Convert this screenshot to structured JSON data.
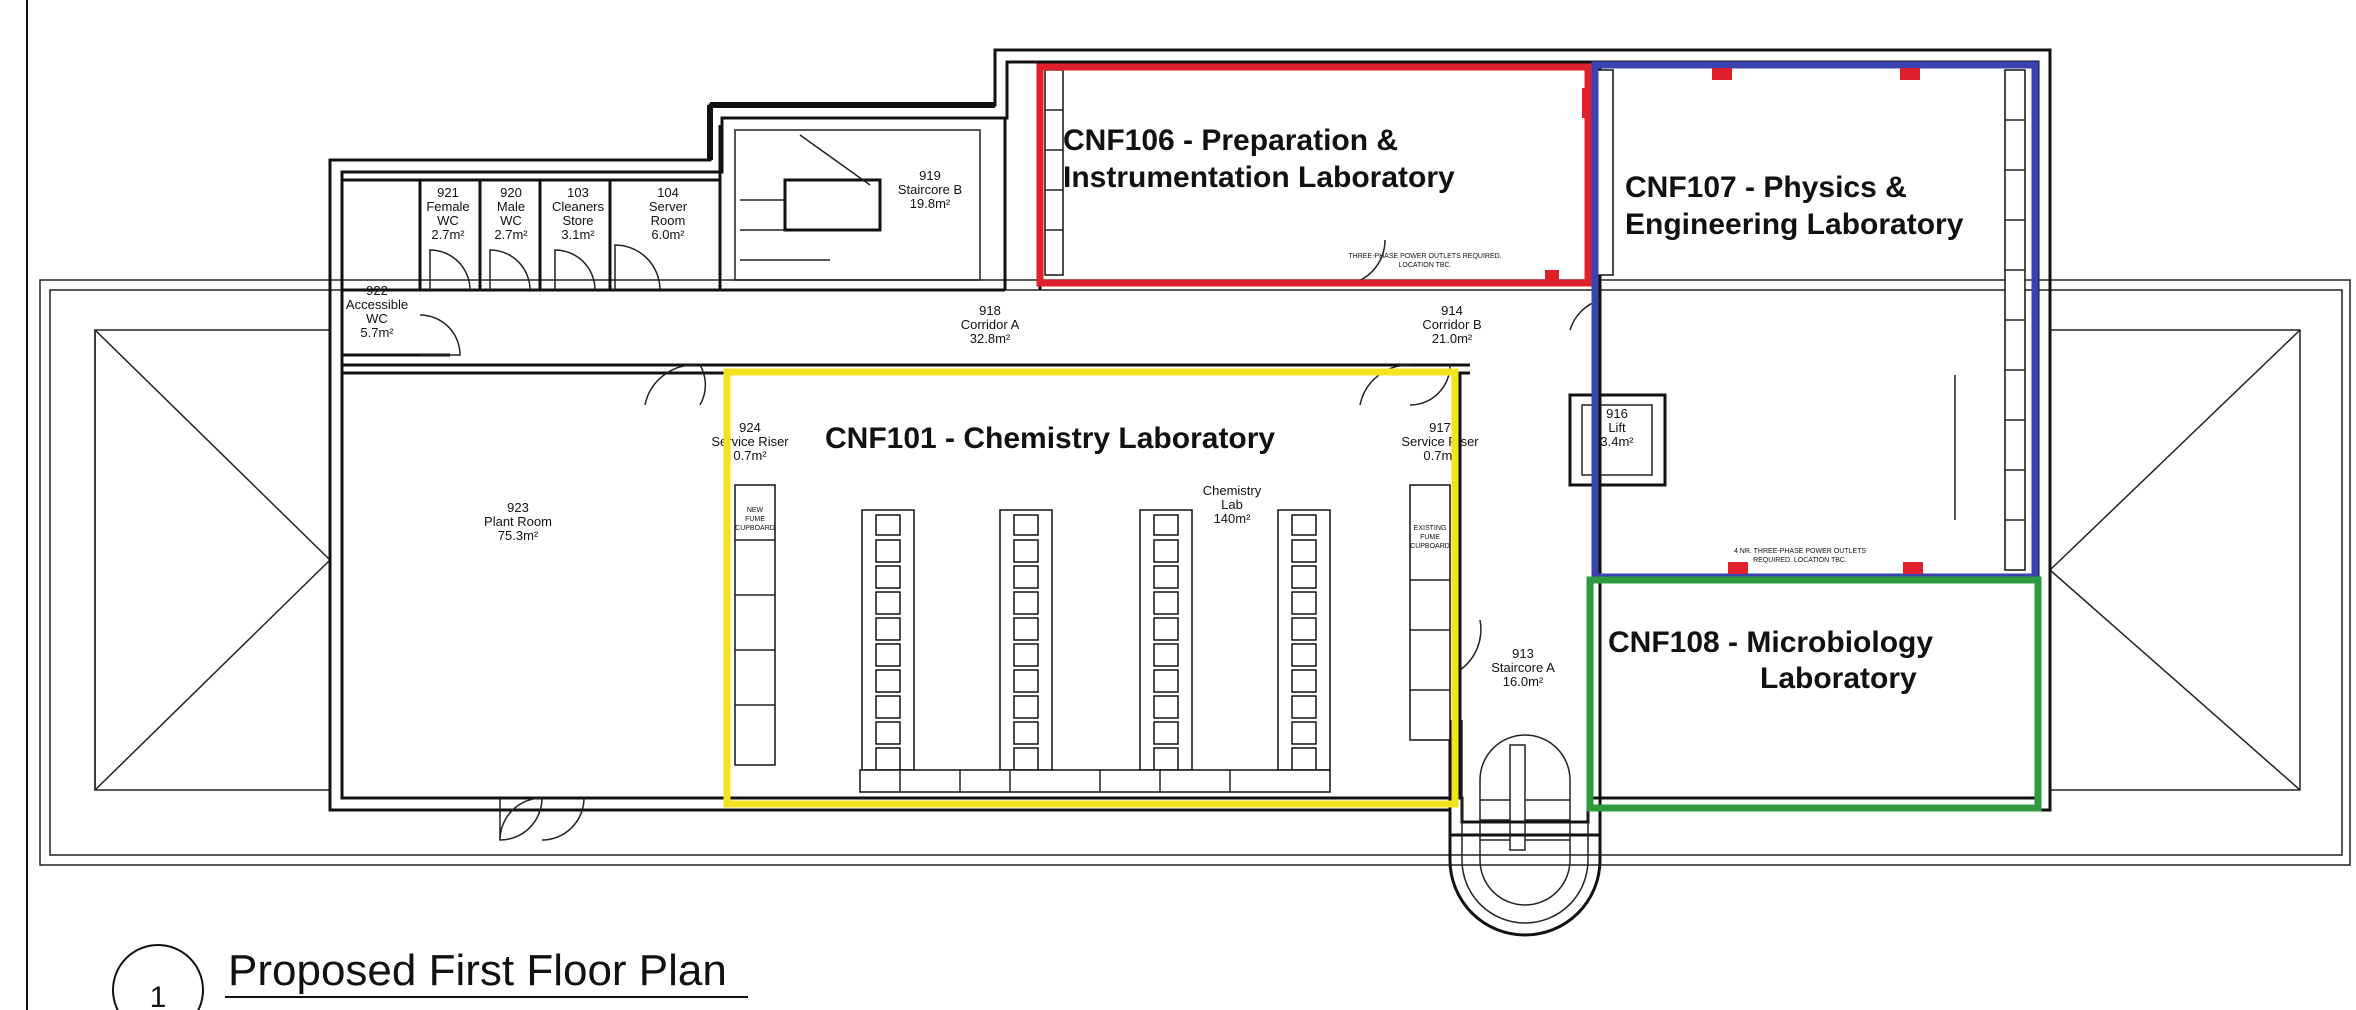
{
  "colors": {
    "cnf101": "#f3e21f",
    "cnf106": "#e0202a",
    "cnf107": "#3a44b0",
    "cnf108": "#2e9a3e",
    "line": "#111111",
    "marker": "#e0202a"
  },
  "zones": {
    "cnf101": "CNF101 - Chemistry Laboratory",
    "cnf106_line1": "CNF106 - Preparation &",
    "cnf106_line2": "Instrumentation Laboratory",
    "cnf107_line1": "CNF107 - Physics &",
    "cnf107_line2": "Engineering Laboratory",
    "cnf108_line1": "CNF108 - Microbiology",
    "cnf108_line2": "Laboratory"
  },
  "rooms": {
    "r921": [
      "921",
      "Female",
      "WC",
      "2.7m²"
    ],
    "r920": [
      "920",
      "Male",
      "WC",
      "2.7m²"
    ],
    "r103": [
      "103",
      "Cleaners",
      "Store",
      "3.1m²"
    ],
    "r104": [
      "104",
      "Server",
      "Room",
      "6.0m²"
    ],
    "r919": [
      "919",
      "Staircore B",
      "19.8m²"
    ],
    "r922": [
      "922",
      "Accessible",
      "WC",
      "5.7m²"
    ],
    "r918": [
      "918",
      "Corridor A",
      "32.8m²"
    ],
    "r914": [
      "914",
      "Corridor B",
      "21.0m²"
    ],
    "r923": [
      "923",
      "Plant Room",
      "75.3m²"
    ],
    "r916": [
      "916",
      "Lift",
      "3.4m²"
    ],
    "r913": [
      "913",
      "Staircore A",
      "16.0m²"
    ],
    "chem": [
      "Chemistry",
      "Lab",
      "140m²"
    ],
    "riser_left": [
      "924",
      "Service Riser",
      "0.7m²"
    ],
    "riser_right": [
      "917",
      "Service Riser",
      "0.7m²"
    ]
  },
  "notes": {
    "cnf106_power": [
      "THREE-PHASE POWER OUTLETS REQUIRED.",
      "LOCATION TBC."
    ],
    "cnf107_power": [
      "4 NR. THREE-PHASE POWER OUTLETS",
      "REQUIRED. LOCATION TBC."
    ]
  },
  "cupboards": {
    "new": [
      "NEW",
      "FUME",
      "CUPBOARD"
    ],
    "existing": [
      "EXISTING",
      "FUME",
      "CUPBOARD"
    ]
  },
  "drawing": {
    "number": "1",
    "title": "Proposed First Floor Plan"
  }
}
